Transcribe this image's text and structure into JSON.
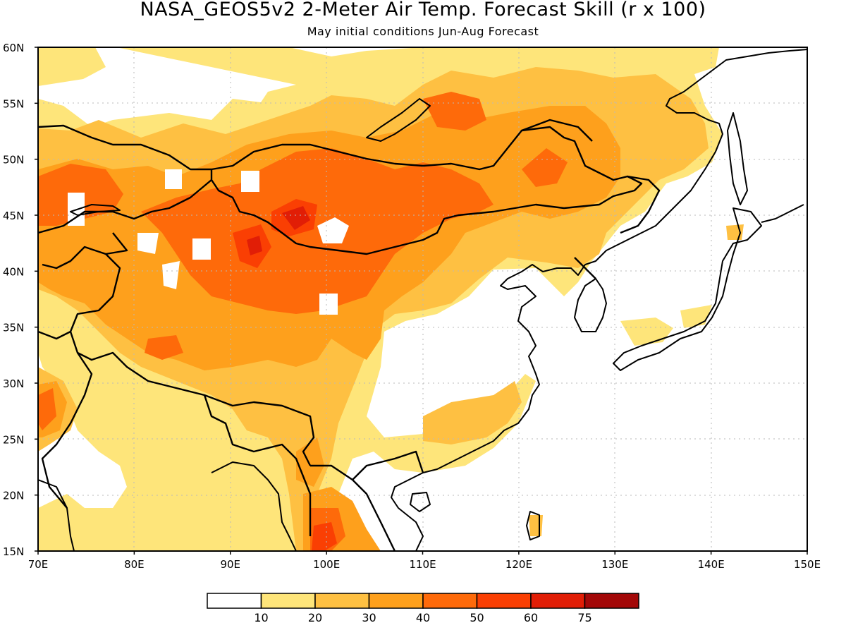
{
  "title": "NASA_GEOS5v2 2-Meter Air Temp. Forecast Skill (r x 100)",
  "subtitle": "May initial conditions   Jun-Aug Forecast",
  "map": {
    "lon_range": [
      70,
      150
    ],
    "lat_range": [
      15,
      60
    ],
    "lon_ticks": [
      {
        "value": 70,
        "label": "70E"
      },
      {
        "value": 80,
        "label": "80E"
      },
      {
        "value": 90,
        "label": "90E"
      },
      {
        "value": 100,
        "label": "100E"
      },
      {
        "value": 110,
        "label": "110E"
      },
      {
        "value": 120,
        "label": "120E"
      },
      {
        "value": 130,
        "label": "130E"
      },
      {
        "value": 140,
        "label": "140E"
      },
      {
        "value": 150,
        "label": "150E"
      }
    ],
    "lat_ticks": [
      {
        "value": 15,
        "label": "15N"
      },
      {
        "value": 20,
        "label": "20N"
      },
      {
        "value": 25,
        "label": "25N"
      },
      {
        "value": 30,
        "label": "30N"
      },
      {
        "value": 35,
        "label": "35N"
      },
      {
        "value": 40,
        "label": "40N"
      },
      {
        "value": 45,
        "label": "45N"
      },
      {
        "value": 50,
        "label": "50N"
      },
      {
        "value": 55,
        "label": "55N"
      },
      {
        "value": 60,
        "label": "60N"
      }
    ],
    "grid": "dotted"
  },
  "colorbar": {
    "colors": [
      "#ffffff",
      "#fee57a",
      "#fec042",
      "#fea01c",
      "#fe6a0a",
      "#fa3f03",
      "#e11e06",
      "#a30808"
    ],
    "labels": [
      "10",
      "20",
      "30",
      "40",
      "50",
      "60",
      "75"
    ]
  },
  "chart_data": {
    "type": "heatmap",
    "title": "NASA_GEOS5v2 2-Meter Air Temp. Forecast Skill (r x 100)",
    "subtitle": "May initial conditions   Jun-Aug Forecast",
    "xlim": [
      70,
      150
    ],
    "ylim": [
      15,
      60
    ],
    "levels": [
      10,
      20,
      30,
      40,
      50,
      60,
      75
    ],
    "regions": [
      {
        "lon_min": 70,
        "lon_max": 133,
        "lat_min": 55,
        "lat_max": 60,
        "value": 15
      },
      {
        "lon_min": 70,
        "lon_max": 138,
        "lat_min": 30,
        "lat_max": 55,
        "value": 25
      },
      {
        "lon_min": 78,
        "lon_max": 125,
        "lat_min": 34,
        "lat_max": 53,
        "value": 35
      },
      {
        "lon_min": 70,
        "lon_max": 80,
        "lat_min": 44,
        "lat_max": 50,
        "value": 45
      },
      {
        "lon_min": 88,
        "lon_max": 105,
        "lat_min": 38,
        "lat_max": 48,
        "value": 45
      },
      {
        "lon_min": 94,
        "lon_max": 99,
        "lat_min": 44,
        "lat_max": 47,
        "value": 55
      },
      {
        "lon_min": 110,
        "lon_max": 116,
        "lat_min": 51,
        "lat_max": 55,
        "value": 45
      },
      {
        "lon_min": 110,
        "lon_max": 123,
        "lat_min": 22,
        "lat_max": 30,
        "value": 25
      },
      {
        "lon_min": 97,
        "lon_max": 104,
        "lat_min": 15,
        "lat_max": 25,
        "value": 35
      },
      {
        "lon_min": 98,
        "lon_max": 103,
        "lat_min": 15,
        "lat_max": 18,
        "value": 55
      },
      {
        "lon_min": 70,
        "lon_max": 74,
        "lat_min": 24,
        "lat_max": 31,
        "value": 35
      }
    ]
  }
}
